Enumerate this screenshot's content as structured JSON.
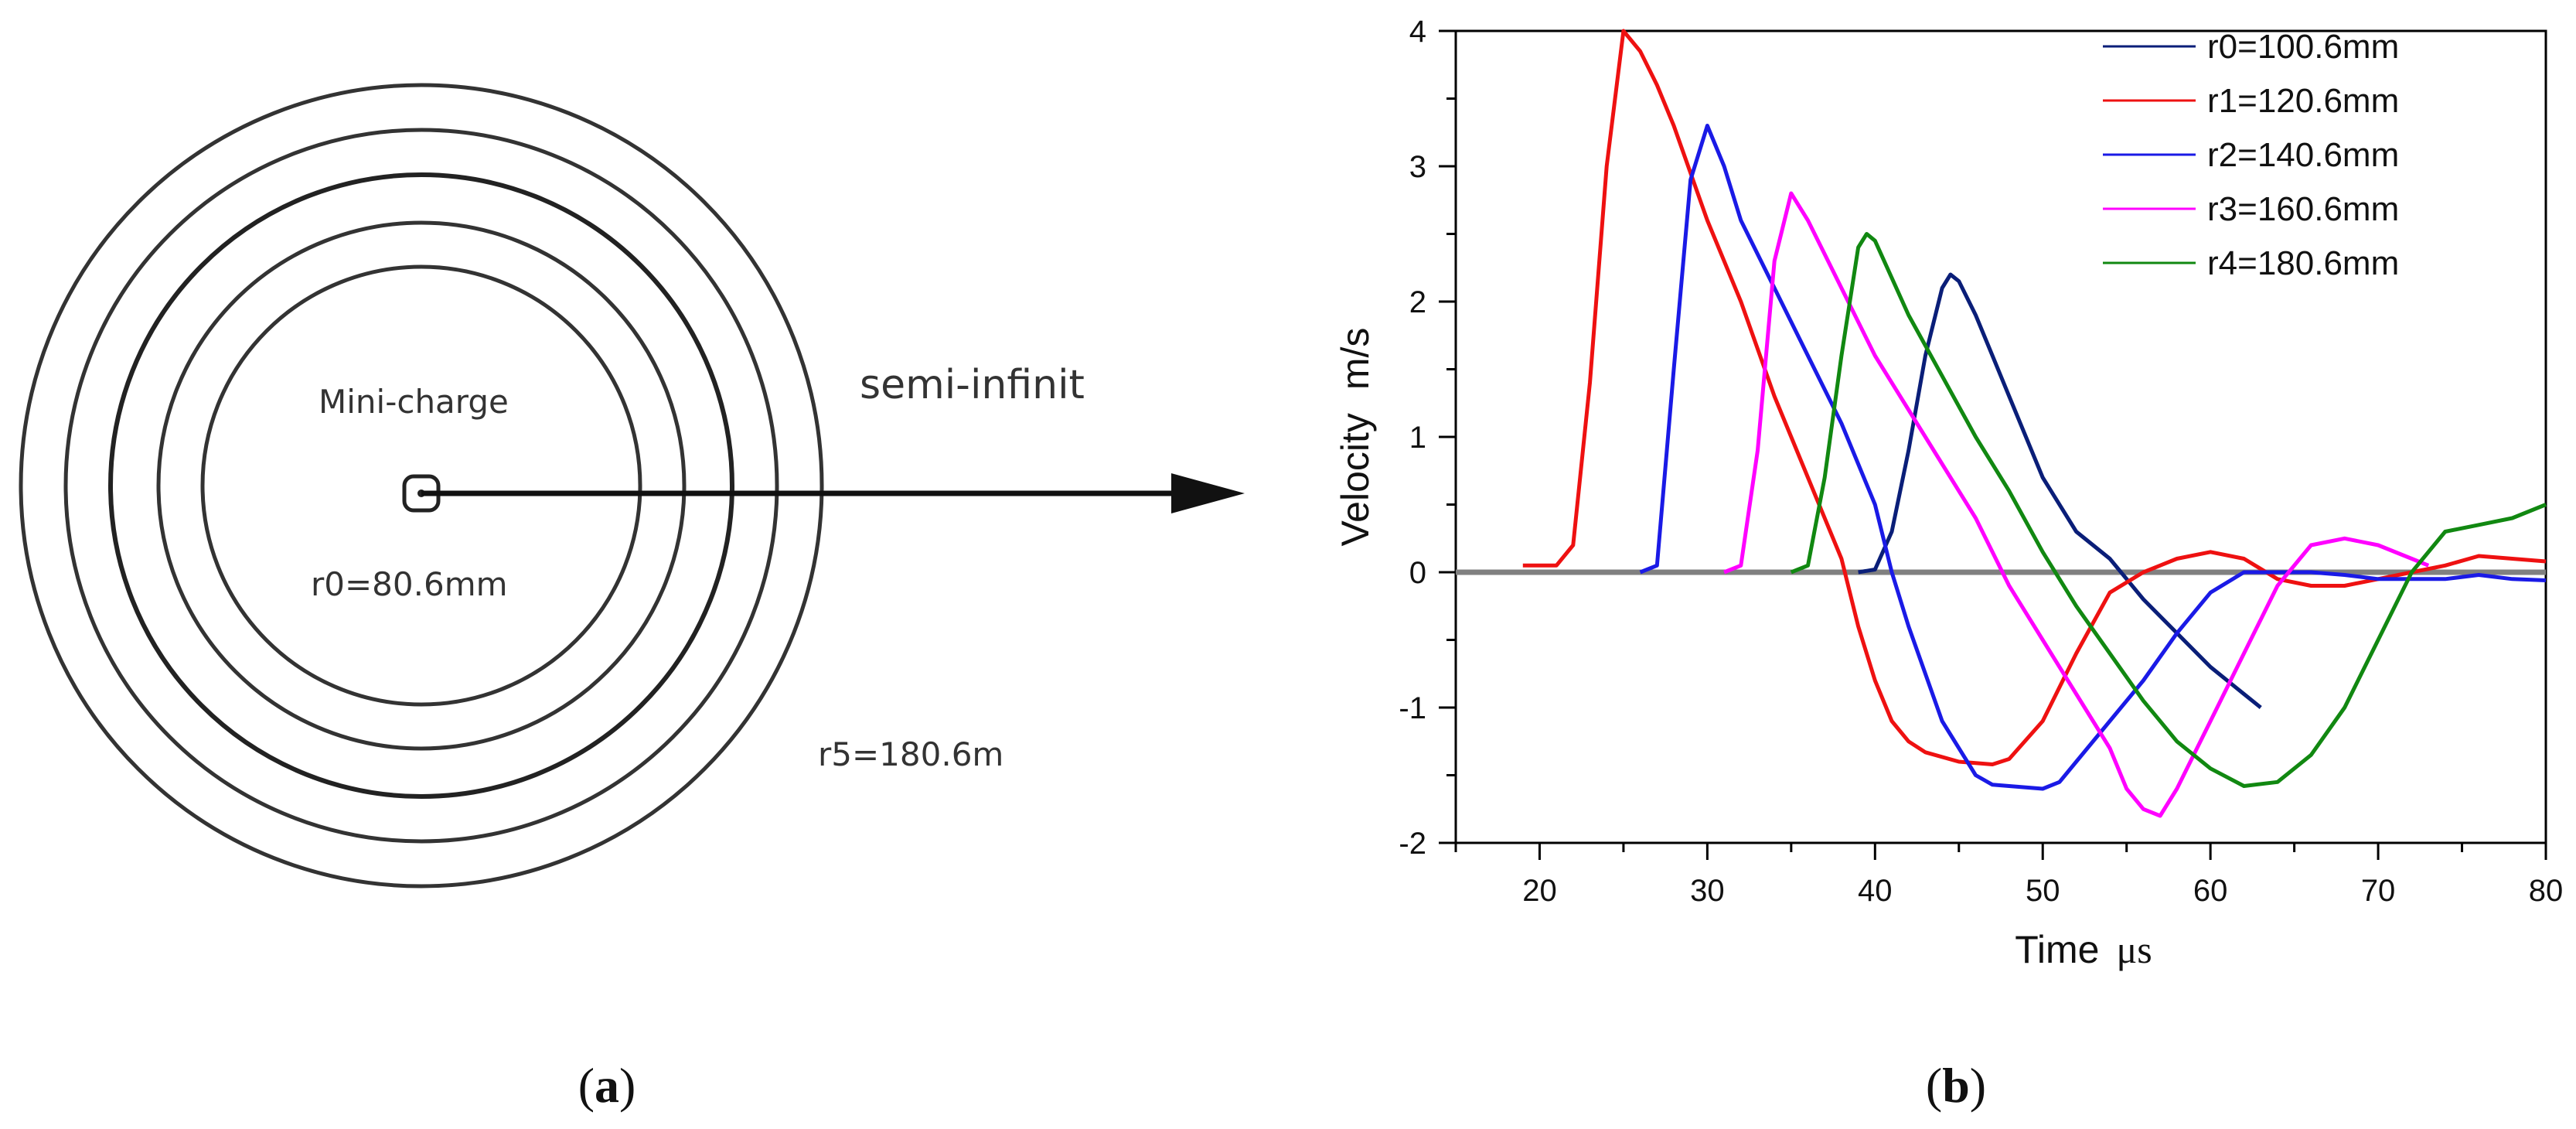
{
  "panel_a": {
    "center_label": "Mini-charge",
    "direction_label": "semi-infinit",
    "inner_radius_label": "r0=80.6mm",
    "outer_radius_label": "r5=180.6m",
    "caption_open": "(",
    "caption_letter": "a",
    "caption_close": ")"
  },
  "panel_b": {
    "caption_open": "(",
    "caption_letter": "b",
    "caption_close": ")"
  },
  "chart_data": {
    "type": "line",
    "xlabel": "Time",
    "xlabel_unit": "μs",
    "ylabel": "Velocity",
    "ylabel_unit": "m/s",
    "xlim": [
      15,
      80
    ],
    "ylim": [
      -2,
      4
    ],
    "x_ticks": [
      20,
      30,
      40,
      50,
      60,
      70,
      80
    ],
    "y_ticks": [
      -2,
      -1,
      0,
      1,
      2,
      3,
      4
    ],
    "legend_position": "top-right",
    "grid": false,
    "zero_line_color": "#808080",
    "series": [
      {
        "name": "r0=100.6mm",
        "color": "#0a1e78",
        "points": [
          [
            39,
            0
          ],
          [
            40,
            0.02
          ],
          [
            41,
            0.3
          ],
          [
            42,
            0.9
          ],
          [
            43,
            1.6
          ],
          [
            44,
            2.1
          ],
          [
            44.5,
            2.2
          ],
          [
            45,
            2.15
          ],
          [
            46,
            1.9
          ],
          [
            47,
            1.6
          ],
          [
            48,
            1.3
          ],
          [
            50,
            0.7
          ],
          [
            52,
            0.3
          ],
          [
            54,
            0.1
          ],
          [
            56,
            -0.2
          ],
          [
            58,
            -0.45
          ],
          [
            60,
            -0.7
          ],
          [
            62,
            -0.9
          ],
          [
            63,
            -1.0
          ]
        ]
      },
      {
        "name": "r1=120.6mm",
        "color": "#ee1111",
        "points": [
          [
            19,
            0.05
          ],
          [
            21,
            0.05
          ],
          [
            22,
            0.2
          ],
          [
            23,
            1.4
          ],
          [
            24,
            3.0
          ],
          [
            25,
            4.0
          ],
          [
            26,
            3.85
          ],
          [
            27,
            3.6
          ],
          [
            28,
            3.3
          ],
          [
            30,
            2.6
          ],
          [
            32,
            2.0
          ],
          [
            34,
            1.3
          ],
          [
            36,
            0.7
          ],
          [
            38,
            0.1
          ],
          [
            39,
            -0.4
          ],
          [
            40,
            -0.8
          ],
          [
            41,
            -1.1
          ],
          [
            42,
            -1.25
          ],
          [
            43,
            -1.33
          ],
          [
            45,
            -1.4
          ],
          [
            47,
            -1.42
          ],
          [
            48,
            -1.38
          ],
          [
            50,
            -1.1
          ],
          [
            52,
            -0.6
          ],
          [
            54,
            -0.15
          ],
          [
            56,
            0.0
          ],
          [
            58,
            0.1
          ],
          [
            60,
            0.15
          ],
          [
            62,
            0.1
          ],
          [
            64,
            -0.05
          ],
          [
            66,
            -0.1
          ],
          [
            68,
            -0.1
          ],
          [
            70,
            -0.05
          ],
          [
            72,
            0.0
          ],
          [
            74,
            0.05
          ],
          [
            76,
            0.12
          ],
          [
            78,
            0.1
          ],
          [
            80,
            0.08
          ]
        ]
      },
      {
        "name": "r2=140.6mm",
        "color": "#1a1ae6",
        "points": [
          [
            26,
            0
          ],
          [
            27,
            0.05
          ],
          [
            28,
            1.5
          ],
          [
            29,
            2.9
          ],
          [
            30,
            3.3
          ],
          [
            31,
            3.0
          ],
          [
            32,
            2.6
          ],
          [
            34,
            2.1
          ],
          [
            36,
            1.6
          ],
          [
            38,
            1.1
          ],
          [
            40,
            0.5
          ],
          [
            41,
            0.0
          ],
          [
            42,
            -0.4
          ],
          [
            44,
            -1.1
          ],
          [
            46,
            -1.5
          ],
          [
            47,
            -1.57
          ],
          [
            48,
            -1.58
          ],
          [
            50,
            -1.6
          ],
          [
            51,
            -1.55
          ],
          [
            52,
            -1.4
          ],
          [
            54,
            -1.1
          ],
          [
            56,
            -0.8
          ],
          [
            58,
            -0.45
          ],
          [
            60,
            -0.15
          ],
          [
            62,
            0.0
          ],
          [
            64,
            0.0
          ],
          [
            66,
            0.0
          ],
          [
            68,
            -0.02
          ],
          [
            70,
            -0.05
          ],
          [
            72,
            -0.05
          ],
          [
            74,
            -0.05
          ],
          [
            76,
            -0.02
          ],
          [
            78,
            -0.05
          ],
          [
            80,
            -0.06
          ]
        ]
      },
      {
        "name": "r3=160.6mm",
        "color": "#ff00ff",
        "points": [
          [
            31,
            0
          ],
          [
            32,
            0.05
          ],
          [
            33,
            0.9
          ],
          [
            34,
            2.3
          ],
          [
            35,
            2.8
          ],
          [
            36,
            2.6
          ],
          [
            38,
            2.1
          ],
          [
            40,
            1.6
          ],
          [
            42,
            1.2
          ],
          [
            44,
            0.8
          ],
          [
            46,
            0.4
          ],
          [
            48,
            -0.1
          ],
          [
            50,
            -0.5
          ],
          [
            52,
            -0.9
          ],
          [
            54,
            -1.3
          ],
          [
            55,
            -1.6
          ],
          [
            56,
            -1.75
          ],
          [
            57,
            -1.8
          ],
          [
            58,
            -1.6
          ],
          [
            60,
            -1.1
          ],
          [
            62,
            -0.6
          ],
          [
            64,
            -0.1
          ],
          [
            66,
            0.2
          ],
          [
            68,
            0.25
          ],
          [
            70,
            0.2
          ],
          [
            72,
            0.1
          ],
          [
            73,
            0.05
          ]
        ]
      },
      {
        "name": "r4=180.6mm",
        "color": "#118811",
        "points": [
          [
            35,
            0
          ],
          [
            36,
            0.05
          ],
          [
            37,
            0.7
          ],
          [
            38,
            1.6
          ],
          [
            39,
            2.4
          ],
          [
            39.5,
            2.5
          ],
          [
            40,
            2.45
          ],
          [
            42,
            1.9
          ],
          [
            44,
            1.45
          ],
          [
            46,
            1.0
          ],
          [
            48,
            0.6
          ],
          [
            50,
            0.15
          ],
          [
            52,
            -0.25
          ],
          [
            54,
            -0.6
          ],
          [
            56,
            -0.95
          ],
          [
            58,
            -1.25
          ],
          [
            60,
            -1.45
          ],
          [
            62,
            -1.58
          ],
          [
            64,
            -1.55
          ],
          [
            66,
            -1.35
          ],
          [
            68,
            -1.0
          ],
          [
            70,
            -0.5
          ],
          [
            72,
            0.0
          ],
          [
            74,
            0.3
          ],
          [
            76,
            0.35
          ],
          [
            78,
            0.4
          ],
          [
            80,
            0.5
          ]
        ]
      }
    ]
  }
}
